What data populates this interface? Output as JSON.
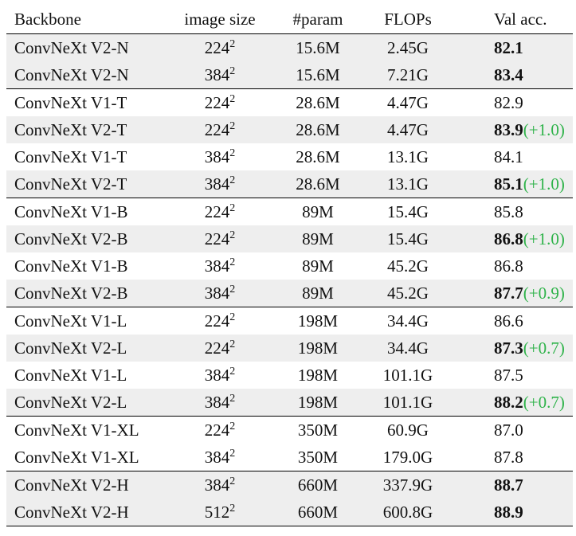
{
  "headers": [
    "Backbone",
    "image size",
    "#param",
    "FLOPs",
    "Val acc."
  ],
  "accent_color": "#2fb34a",
  "rows": [
    {
      "backbone": "ConvNeXt V2-N",
      "size": "224",
      "exp": "2",
      "param": "15.6M",
      "flops": "2.45G",
      "acc": "82.1",
      "bold": true,
      "delta": "",
      "shade": true,
      "group_start": true
    },
    {
      "backbone": "ConvNeXt V2-N",
      "size": "384",
      "exp": "2",
      "param": "15.6M",
      "flops": "7.21G",
      "acc": "83.4",
      "bold": true,
      "delta": "",
      "shade": true,
      "group_start": false
    },
    {
      "backbone": "ConvNeXt V1-T",
      "size": "224",
      "exp": "2",
      "param": "28.6M",
      "flops": "4.47G",
      "acc": "82.9",
      "bold": false,
      "delta": "",
      "shade": false,
      "group_start": true
    },
    {
      "backbone": "ConvNeXt V2-T",
      "size": "224",
      "exp": "2",
      "param": "28.6M",
      "flops": "4.47G",
      "acc": "83.9",
      "bold": true,
      "delta": "(+1.0)",
      "shade": true,
      "group_start": false
    },
    {
      "backbone": "ConvNeXt V1-T",
      "size": "384",
      "exp": "2",
      "param": "28.6M",
      "flops": "13.1G",
      "acc": "84.1",
      "bold": false,
      "delta": "",
      "shade": false,
      "group_start": false
    },
    {
      "backbone": "ConvNeXt V2-T",
      "size": "384",
      "exp": "2",
      "param": "28.6M",
      "flops": "13.1G",
      "acc": "85.1",
      "bold": true,
      "delta": "(+1.0)",
      "shade": true,
      "group_start": false
    },
    {
      "backbone": "ConvNeXt V1-B",
      "size": "224",
      "exp": "2",
      "param": "89M",
      "flops": "15.4G",
      "acc": "85.8",
      "bold": false,
      "delta": "",
      "shade": false,
      "group_start": true
    },
    {
      "backbone": "ConvNeXt V2-B",
      "size": "224",
      "exp": "2",
      "param": "89M",
      "flops": "15.4G",
      "acc": "86.8",
      "bold": true,
      "delta": "(+1.0)",
      "shade": true,
      "group_start": false
    },
    {
      "backbone": "ConvNeXt V1-B",
      "size": "384",
      "exp": "2",
      "param": "89M",
      "flops": "45.2G",
      "acc": "86.8",
      "bold": false,
      "delta": "",
      "shade": false,
      "group_start": false
    },
    {
      "backbone": "ConvNeXt V2-B",
      "size": "384",
      "exp": "2",
      "param": "89M",
      "flops": "45.2G",
      "acc": "87.7",
      "bold": true,
      "delta": "(+0.9)",
      "shade": true,
      "group_start": false
    },
    {
      "backbone": "ConvNeXt V1-L",
      "size": "224",
      "exp": "2",
      "param": "198M",
      "flops": "34.4G",
      "acc": "86.6",
      "bold": false,
      "delta": "",
      "shade": false,
      "group_start": true
    },
    {
      "backbone": "ConvNeXt V2-L",
      "size": "224",
      "exp": "2",
      "param": "198M",
      "flops": "34.4G",
      "acc": "87.3",
      "bold": true,
      "delta": "(+0.7)",
      "shade": true,
      "group_start": false
    },
    {
      "backbone": "ConvNeXt V1-L",
      "size": "384",
      "exp": "2",
      "param": "198M",
      "flops": "101.1G",
      "acc": "87.5",
      "bold": false,
      "delta": "",
      "shade": false,
      "group_start": false
    },
    {
      "backbone": "ConvNeXt V2-L",
      "size": "384",
      "exp": "2",
      "param": "198M",
      "flops": "101.1G",
      "acc": "88.2",
      "bold": true,
      "delta": "(+0.7)",
      "shade": true,
      "group_start": false
    },
    {
      "backbone": "ConvNeXt V1-XL",
      "size": "224",
      "exp": "2",
      "param": "350M",
      "flops": "60.9G",
      "acc": "87.0",
      "bold": false,
      "delta": "",
      "shade": false,
      "group_start": true
    },
    {
      "backbone": "ConvNeXt V1-XL",
      "size": "384",
      "exp": "2",
      "param": "350M",
      "flops": "179.0G",
      "acc": "87.8",
      "bold": false,
      "delta": "",
      "shade": false,
      "group_start": false
    },
    {
      "backbone": "ConvNeXt V2-H",
      "size": "384",
      "exp": "2",
      "param": "660M",
      "flops": "337.9G",
      "acc": "88.7",
      "bold": true,
      "delta": "",
      "shade": true,
      "group_start": true
    },
    {
      "backbone": "ConvNeXt V2-H",
      "size": "512",
      "exp": "2",
      "param": "660M",
      "flops": "600.8G",
      "acc": "88.9",
      "bold": true,
      "delta": "",
      "shade": true,
      "group_start": false
    }
  ]
}
